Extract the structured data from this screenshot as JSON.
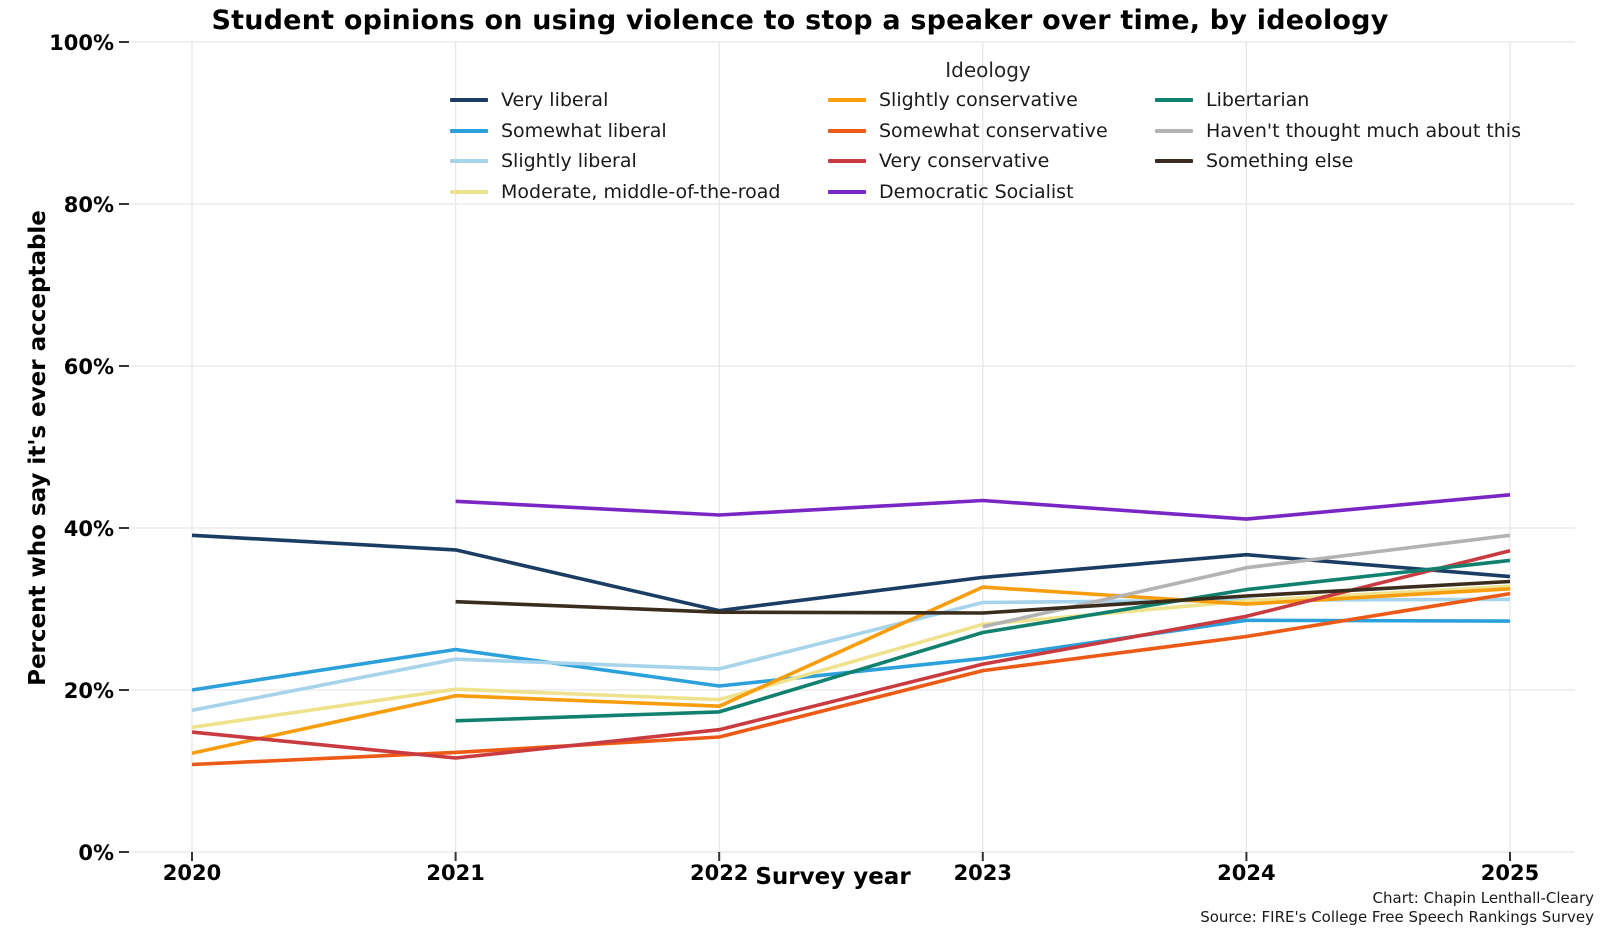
{
  "page": {
    "credit_line1": "Chart: Chapin Lenthall-Cleary",
    "credit_line2": "Source: FIRE's College Free Speech Rankings Survey"
  },
  "chart_data": {
    "type": "line",
    "title": "Student opinions on using violence to stop a speaker over time, by ideology",
    "xlabel": "Survey year",
    "ylabel": "Percent who say it's ever acceptable",
    "x": [
      2020,
      2021,
      2022,
      2023,
      2024,
      2025
    ],
    "ylim": [
      0,
      100
    ],
    "yticks": [
      0,
      20,
      40,
      60,
      80,
      100
    ],
    "ytick_labels": [
      "0%",
      "20%",
      "40%",
      "60%",
      "80%",
      "100%"
    ],
    "grid": true,
    "legend": {
      "title": "Ideology",
      "position": "top-center-inside",
      "columns": [
        [
          0,
          1,
          2,
          3
        ],
        [
          4,
          5,
          6,
          7
        ],
        [
          8,
          9,
          10
        ]
      ]
    },
    "series": [
      {
        "name": "Very liberal",
        "color": "#1c3d63",
        "values": [
          39.1,
          37.3,
          29.8,
          33.9,
          36.7,
          34.0
        ]
      },
      {
        "name": "Somewhat liberal",
        "color": "#2ba0dc",
        "values": [
          20.0,
          25.0,
          20.5,
          23.9,
          28.6,
          28.5
        ]
      },
      {
        "name": "Slightly liberal",
        "color": "#a7d3eb",
        "values": [
          17.5,
          23.8,
          22.6,
          30.8,
          31.1,
          31.2
        ]
      },
      {
        "name": "Moderate, middle-of-the-road",
        "color": "#eee28c",
        "values": [
          15.4,
          20.1,
          18.8,
          28.1,
          31.0,
          32.8
        ]
      },
      {
        "name": "Slightly conservative",
        "color": "#f89d0e",
        "values": [
          12.2,
          19.3,
          18.0,
          32.7,
          30.6,
          32.5
        ]
      },
      {
        "name": "Somewhat conservative",
        "color": "#ed5a16",
        "values": [
          10.8,
          12.3,
          14.2,
          22.4,
          26.6,
          31.9
        ]
      },
      {
        "name": "Very conservative",
        "color": "#c93b40",
        "values": [
          14.8,
          11.6,
          15.1,
          23.2,
          29.1,
          37.2
        ]
      },
      {
        "name": "Democratic Socialist",
        "color": "#7a26c4",
        "values": [
          null,
          43.3,
          41.6,
          43.4,
          41.1,
          44.1
        ]
      },
      {
        "name": "Libertarian",
        "color": "#11816f",
        "values": [
          null,
          16.2,
          17.3,
          27.1,
          32.4,
          36.0
        ]
      },
      {
        "name": "Haven't thought much about this",
        "color": "#b3b3b3",
        "values": [
          null,
          null,
          null,
          27.8,
          35.1,
          39.1
        ]
      },
      {
        "name": "Something else",
        "color": "#3a2d1d",
        "values": [
          null,
          30.9,
          29.6,
          29.5,
          31.6,
          33.4
        ]
      }
    ]
  }
}
